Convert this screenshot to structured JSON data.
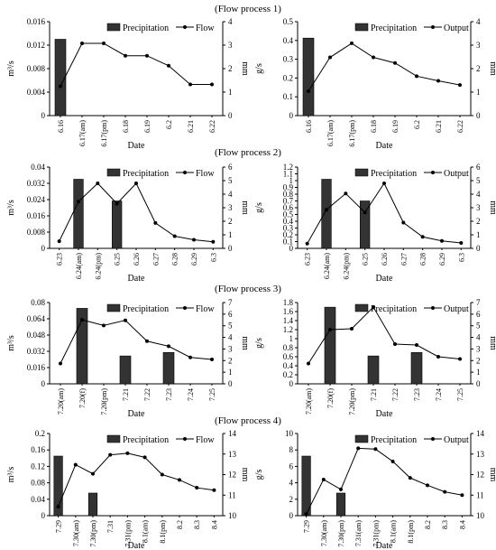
{
  "section_titles": [
    "(Flow process 1)",
    "(Flow process 2)",
    "(Flow process 3)",
    "(Flow process 4)"
  ],
  "chart_data": [
    {
      "type": "bar+line",
      "row": 0,
      "col": 0,
      "categories": [
        "6.16",
        "6.17(am)",
        "6.17(pm)",
        "6.18",
        "6.19",
        "6.2",
        "6.21",
        "6.22"
      ],
      "xlabel": "Date",
      "ylabel": "m³/s",
      "y2label": "mm",
      "ylim": [
        0,
        0.016
      ],
      "yticks": [
        0,
        0.004,
        0.008,
        0.012,
        0.016
      ],
      "ytick_labels": [
        "0",
        "0.004",
        "0.008",
        "0.012",
        "0.016"
      ],
      "y2lim": [
        0,
        4
      ],
      "y2ticks": [
        0,
        1,
        2,
        3,
        4
      ],
      "y2tick_labels": [
        "0",
        "1",
        "2",
        "3",
        "4"
      ],
      "bars": {
        "name": "Precipitation",
        "values": [
          3.25,
          null,
          null,
          null,
          null,
          null,
          null,
          null
        ]
      },
      "line": {
        "name": "Flow",
        "values": [
          0.005,
          0.0123,
          0.0123,
          0.0102,
          0.0102,
          0.0085,
          0.0053,
          0.0053
        ]
      },
      "legend": "top-right"
    },
    {
      "type": "bar+line",
      "row": 0,
      "col": 1,
      "categories": [
        "6.16",
        "6.17(am)",
        "6.17(pm)",
        "6.18",
        "6.19",
        "6.2",
        "6.21",
        "6.22"
      ],
      "xlabel": "Date",
      "ylabel": "g/s",
      "y2label": "mm",
      "ylim": [
        0,
        0.5
      ],
      "yticks": [
        0,
        0.1,
        0.2,
        0.3,
        0.4,
        0.5
      ],
      "ytick_labels": [
        "0",
        "0.1",
        "0.2",
        "0.3",
        "0.4",
        "0.5"
      ],
      "y2lim": [
        0,
        4
      ],
      "y2ticks": [
        0,
        1,
        2,
        3,
        4
      ],
      "y2tick_labels": [
        "0",
        "1",
        "2",
        "3",
        "4"
      ],
      "bars": {
        "name": "Precipitation",
        "values": [
          3.3,
          null,
          null,
          null,
          null,
          null,
          null,
          null
        ]
      },
      "line": {
        "name": "Output",
        "values": [
          0.13,
          0.31,
          0.385,
          0.31,
          0.28,
          0.21,
          0.185,
          0.163
        ]
      },
      "legend": "top-right"
    },
    {
      "type": "bar+line",
      "row": 1,
      "col": 0,
      "categories": [
        "6.23",
        "6.24(am)",
        "6.24(pm)",
        "6.25",
        "6.26",
        "6.27",
        "6.28",
        "6.29",
        "6.3"
      ],
      "xlabel": "Date",
      "ylabel": "m³/s",
      "y2label": "mm",
      "ylim": [
        0,
        0.04
      ],
      "yticks": [
        0,
        0.008,
        0.016,
        0.024,
        0.032,
        0.04
      ],
      "ytick_labels": [
        "0",
        "0.008",
        "0.016",
        "0.024",
        "0.032",
        "0.04"
      ],
      "y2lim": [
        0,
        6
      ],
      "y2ticks": [
        0,
        1,
        2,
        3,
        4,
        5,
        6
      ],
      "y2tick_labels": [
        "0",
        "1",
        "2",
        "3",
        "4",
        "5",
        "6"
      ],
      "bars": {
        "name": "Precipitation",
        "values": [
          null,
          5.1,
          null,
          3.5,
          null,
          null,
          null,
          null,
          null
        ]
      },
      "line": {
        "name": "Flow",
        "values": [
          0.0035,
          0.023,
          0.032,
          0.022,
          0.032,
          0.0125,
          0.006,
          0.0042,
          0.0032
        ]
      },
      "legend": "top-right"
    },
    {
      "type": "bar+line",
      "row": 1,
      "col": 1,
      "categories": [
        "6.23",
        "6.24(am)",
        "6.24(pm)",
        "6.25",
        "6.26",
        "6.27",
        "6.28",
        "6.29",
        "6.3"
      ],
      "xlabel": "Date",
      "ylabel": "g/s",
      "y2label": "mm",
      "ylim": [
        0,
        1.2
      ],
      "yticks": [
        0,
        0.1,
        0.2,
        0.3,
        0.4,
        0.5,
        0.6,
        0.7,
        0.8,
        0.9,
        1,
        1.1,
        1.2
      ],
      "ytick_labels": [
        "0",
        "0.1",
        "0.2",
        "0.3",
        "0.4",
        "0.5",
        "0.6",
        "0.7",
        "0.8",
        "0.9",
        "1",
        "1.1",
        "1.2"
      ],
      "y2lim": [
        0,
        6
      ],
      "y2ticks": [
        0,
        1,
        2,
        3,
        4,
        5,
        6
      ],
      "y2tick_labels": [
        "0",
        "1",
        "2",
        "3",
        "4",
        "5",
        "6"
      ],
      "bars": {
        "name": "Precipitation",
        "values": [
          null,
          5.1,
          null,
          3.5,
          null,
          null,
          null,
          null,
          null
        ]
      },
      "line": {
        "name": "Output",
        "values": [
          0.07,
          0.57,
          0.81,
          0.53,
          0.96,
          0.38,
          0.17,
          0.11,
          0.08
        ]
      },
      "legend": "top-right"
    },
    {
      "type": "bar+line",
      "row": 2,
      "col": 0,
      "categories": [
        "7.20(am)",
        "7.20(f)",
        "7.20(pm)",
        "7.21",
        "7.22",
        "7.23",
        "7.24",
        "7.25"
      ],
      "xlabel": "Date",
      "ylabel": "m³/s",
      "y2label": "mm",
      "ylim": [
        0,
        0.08
      ],
      "yticks": [
        0,
        0.016,
        0.032,
        0.048,
        0.064,
        0.08
      ],
      "ytick_labels": [
        "0",
        "0.016",
        "0.032",
        "0.048",
        "0.064",
        "0.08"
      ],
      "y2lim": [
        0,
        7
      ],
      "y2ticks": [
        0,
        1,
        2,
        3,
        4,
        5,
        6,
        7
      ],
      "y2tick_labels": [
        "0",
        "1",
        "2",
        "3",
        "4",
        "5",
        "6",
        "7"
      ],
      "bars": {
        "name": "Precipitation",
        "values": [
          null,
          6.5,
          null,
          2.4,
          null,
          2.7,
          null,
          null
        ]
      },
      "line": {
        "name": "Flow",
        "values": [
          0.02,
          0.063,
          0.0575,
          0.0625,
          0.042,
          0.037,
          0.026,
          0.024
        ]
      },
      "legend": "top-right"
    },
    {
      "type": "bar+line",
      "row": 2,
      "col": 1,
      "categories": [
        "7.20(am)",
        "7.20(f)",
        "7.20(pm)",
        "7.21",
        "7.22",
        "7.23",
        "7.24",
        "7.25"
      ],
      "xlabel": "Date",
      "ylabel": "g/s",
      "y2label": "mm",
      "ylim": [
        0,
        1.8
      ],
      "yticks": [
        0,
        0.2,
        0.4,
        0.6,
        0.8,
        1,
        1.2,
        1.4,
        1.6,
        1.8
      ],
      "ytick_labels": [
        "0",
        "0.2",
        "0.4",
        "0.6",
        "0.8",
        "1",
        "1.2",
        "1.4",
        "1.6",
        "1.8"
      ],
      "y2lim": [
        0,
        7
      ],
      "y2ticks": [
        0,
        1,
        2,
        3,
        4,
        5,
        6,
        7
      ],
      "y2tick_labels": [
        "0",
        "1",
        "2",
        "3",
        "4",
        "5",
        "6",
        "7"
      ],
      "bars": {
        "name": "Precipitation",
        "values": [
          null,
          6.6,
          null,
          2.4,
          null,
          2.7,
          null,
          null
        ]
      },
      "line": {
        "name": "Output",
        "values": [
          0.45,
          1.2,
          1.22,
          1.7,
          0.88,
          0.86,
          0.6,
          0.55
        ]
      },
      "legend": "top-right"
    },
    {
      "type": "bar+line",
      "row": 3,
      "col": 0,
      "categories": [
        "7.29",
        "7.30(am)",
        "7.30(pm)",
        "7.31",
        "7.31(pm)",
        "8.1(am)",
        "8.1(pm)",
        "8.2",
        "8.3",
        "8.4"
      ],
      "xlabel": "Date",
      "ylabel": "m³/s",
      "y2label": "mm",
      "ylim": [
        0,
        0.2
      ],
      "yticks": [
        0,
        0.04,
        0.08,
        0.12,
        0.16,
        0.2
      ],
      "ytick_labels": [
        "0",
        "0.04",
        "0.08",
        "0.12",
        "0.16",
        "0.2"
      ],
      "y2lim": [
        10,
        14
      ],
      "y2ticks": [
        10,
        11,
        12,
        13,
        14
      ],
      "y2tick_labels": [
        "10",
        "11",
        "12",
        "13",
        "14"
      ],
      "bars": {
        "name": "Precipitation",
        "values": [
          12.9,
          null,
          11.1,
          null,
          null,
          null,
          null,
          null,
          null,
          null
        ]
      },
      "line": {
        "name": "Flow",
        "values": [
          0.022,
          0.124,
          0.102,
          0.148,
          0.152,
          0.142,
          0.1,
          0.087,
          0.068,
          0.062
        ]
      },
      "legend": "top-right"
    },
    {
      "type": "bar+line",
      "row": 3,
      "col": 1,
      "categories": [
        "7.29",
        "7.30(am)",
        "7.30(pm)",
        "7.31(am)",
        "7.31(pm)",
        "8.1(am)",
        "8.1(pm)",
        "8.2",
        "8.3",
        "8.4"
      ],
      "xlabel": "Date",
      "ylabel": "g/s",
      "y2label": "mm",
      "ylim": [
        0,
        10
      ],
      "yticks": [
        0,
        2,
        4,
        6,
        8,
        10
      ],
      "ytick_labels": [
        "0",
        "2",
        "4",
        "6",
        "8",
        "10"
      ],
      "y2lim": [
        10,
        14
      ],
      "y2ticks": [
        10,
        11,
        12,
        13,
        14
      ],
      "y2tick_labels": [
        "10",
        "11",
        "12",
        "13",
        "14"
      ],
      "bars": {
        "name": "Precipitation",
        "values": [
          12.9,
          null,
          11.1,
          null,
          null,
          null,
          null,
          null,
          null,
          null
        ]
      },
      "line": {
        "name": "Output",
        "values": [
          0.2,
          4.4,
          3.2,
          8.2,
          8.1,
          6.6,
          4.6,
          3.7,
          2.9,
          2.5
        ]
      },
      "legend": "top-right"
    }
  ]
}
